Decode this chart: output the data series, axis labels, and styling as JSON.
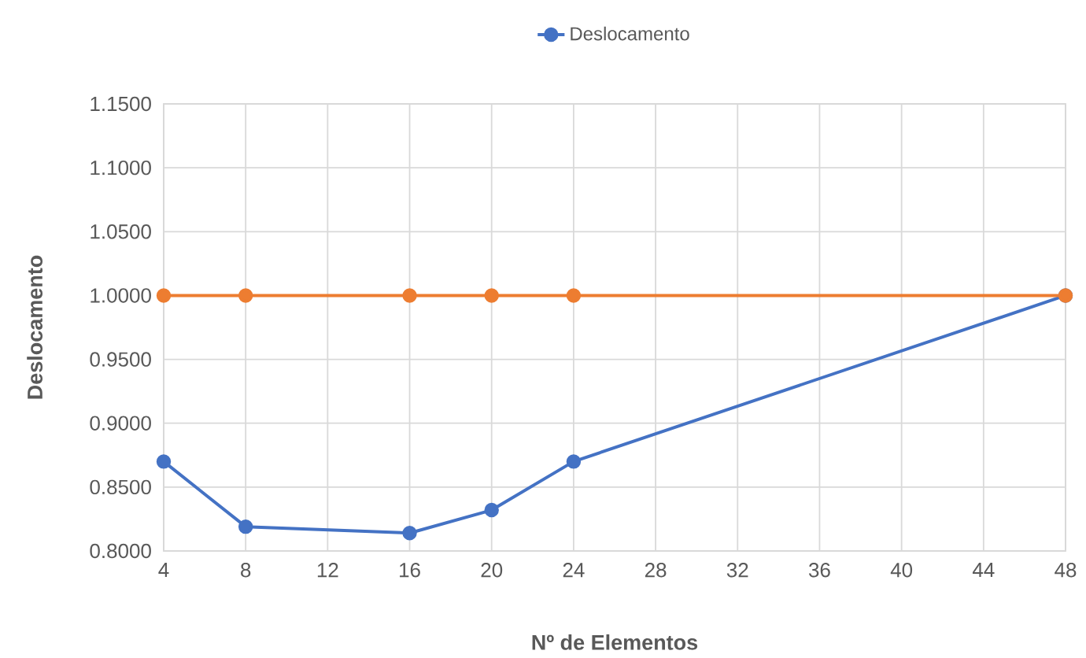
{
  "chart_data": {
    "type": "line",
    "xlabel": "Nº de Elementos",
    "ylabel": "Deslocamento",
    "xlim": [
      4,
      48
    ],
    "xticks": [
      4,
      8,
      12,
      16,
      20,
      24,
      28,
      32,
      36,
      40,
      44,
      48
    ],
    "ylim": [
      0.8,
      1.15
    ],
    "yticks": [
      {
        "value": 0.8,
        "label": "0.8000"
      },
      {
        "value": 0.85,
        "label": "0.8500"
      },
      {
        "value": 0.9,
        "label": "0.9000"
      },
      {
        "value": 0.95,
        "label": "0.9500"
      },
      {
        "value": 1.0,
        "label": "1.0000"
      },
      {
        "value": 1.05,
        "label": "1.0500"
      },
      {
        "value": 1.1,
        "label": "1.1000"
      },
      {
        "value": 1.15,
        "label": "1.1500"
      }
    ],
    "x": [
      4,
      8,
      16,
      20,
      24,
      48
    ],
    "series": [
      {
        "name": "Deslocamento",
        "color": "#4472c4",
        "values": [
          0.87,
          0.819,
          0.814,
          0.832,
          0.87,
          1.0
        ]
      },
      {
        "color": "#ed7d31",
        "values": [
          1.0,
          1.0,
          1.0,
          1.0,
          1.0,
          1.0
        ]
      }
    ],
    "grid": true,
    "legend": "top",
    "marker": "circle",
    "line_style": "solid"
  }
}
